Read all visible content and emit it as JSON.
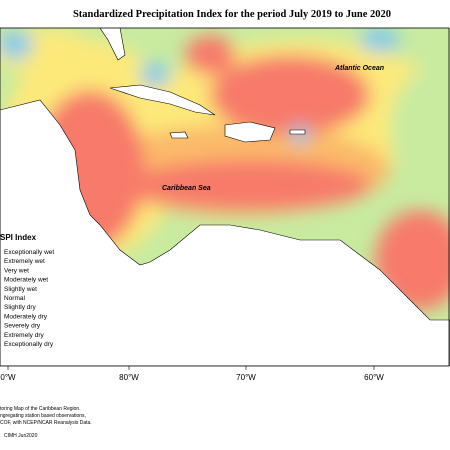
{
  "title": "Standardized Precipitation Index for the period July 2019 to June 2020",
  "map_labels": [
    "Atlantic Ocean",
    "Caribbean Sea"
  ],
  "legend": {
    "title": "SPI Index",
    "items": [
      "Exceptionally wet",
      "Extremely wet",
      "Very wet",
      "Moderately wet",
      "Slightly wet",
      "Normal",
      "Slightly dry",
      "Moderately dry",
      "Severely dry",
      "Extremely dry",
      "Exceptionally dry"
    ]
  },
  "longitude_labels": [
    "0°W",
    "80°W",
    "70°W",
    "60°W"
  ],
  "notes": [
    "toring Map of the Caribbean Region.",
    "ngregating station based observations,",
    "COF, with NCEP/NCAR Reanalysis Data."
  ],
  "credit": "CIMH Jun2020"
}
